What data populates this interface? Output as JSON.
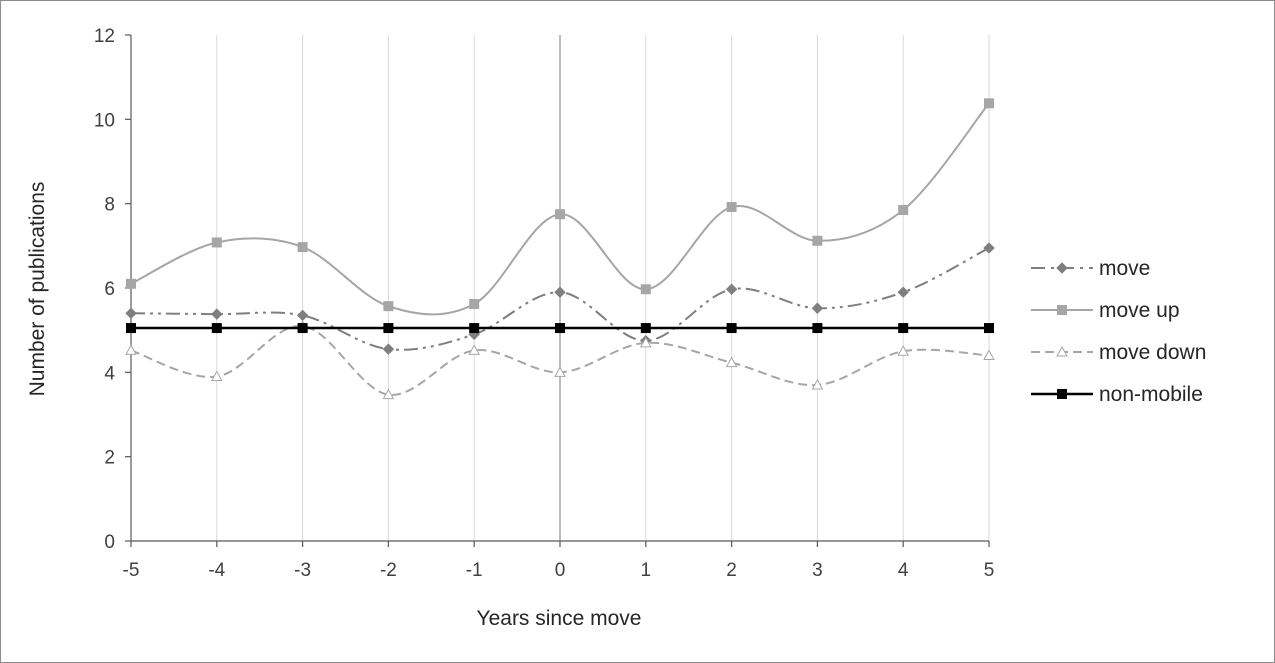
{
  "chart_data": {
    "type": "line",
    "title": "",
    "xlabel": "Years since move",
    "ylabel": "Number of publications",
    "x": [
      -5,
      -4,
      -3,
      -2,
      -1,
      0,
      1,
      2,
      3,
      4,
      5
    ],
    "xlim": [
      -5,
      5
    ],
    "ylim": [
      0,
      12
    ],
    "yticks": [
      0,
      2,
      4,
      6,
      8,
      10,
      12
    ],
    "grid": "vertical",
    "reference_line_x": 0,
    "legend_position": "right",
    "series": [
      {
        "name": "move",
        "values": [
          5.4,
          5.38,
          5.35,
          4.55,
          4.9,
          5.9,
          4.75,
          5.97,
          5.52,
          5.9,
          6.95
        ],
        "color": "#7f7f7f",
        "line_style": "dash-dot-dot",
        "marker": "diamond",
        "smooth": true
      },
      {
        "name": "move up",
        "values": [
          6.1,
          7.08,
          6.97,
          5.57,
          5.62,
          7.75,
          5.97,
          7.92,
          7.12,
          7.85,
          10.38
        ],
        "color": "#a6a6a6",
        "line_style": "solid",
        "marker": "square",
        "smooth": true
      },
      {
        "name": "move down",
        "values": [
          4.52,
          3.9,
          5.1,
          3.47,
          4.52,
          4.0,
          4.7,
          4.23,
          3.7,
          4.5,
          4.4
        ],
        "color": "#a6a6a6",
        "line_style": "dashed",
        "marker": "triangle",
        "smooth": true
      },
      {
        "name": "non-mobile",
        "values": [
          5.05,
          5.05,
          5.05,
          5.05,
          5.05,
          5.05,
          5.05,
          5.05,
          5.05,
          5.05,
          5.05
        ],
        "color": "#000000",
        "line_style": "solid",
        "marker": "square",
        "smooth": false
      }
    ]
  }
}
